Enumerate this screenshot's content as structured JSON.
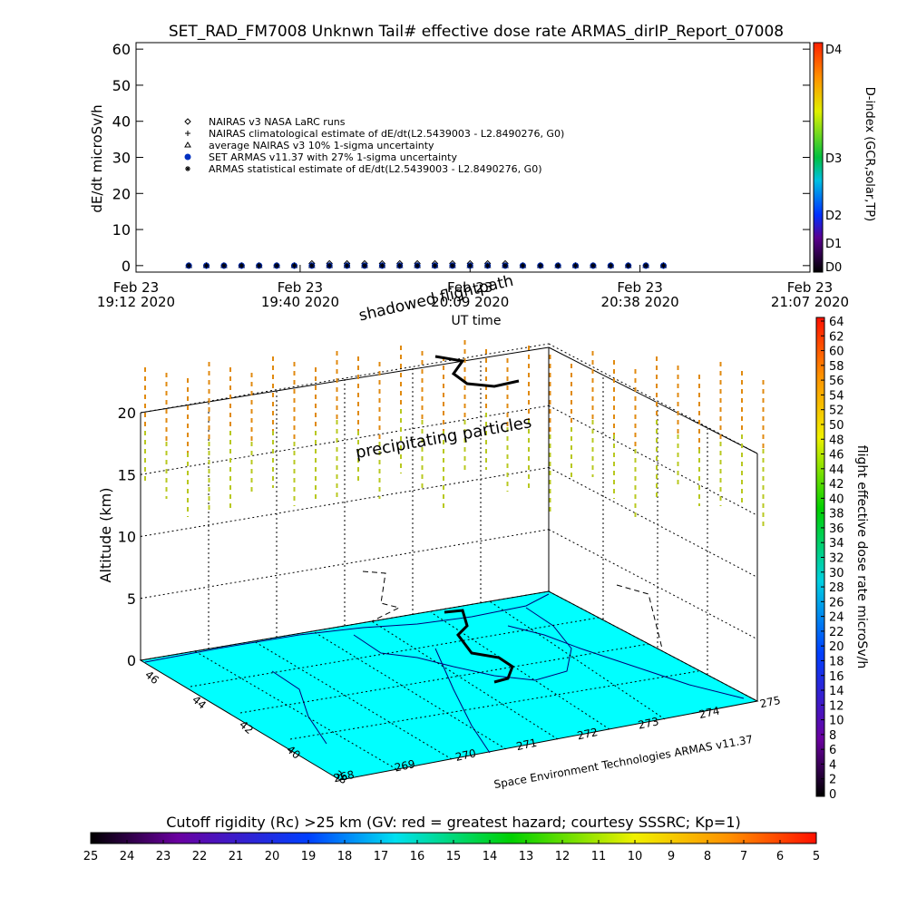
{
  "chart_data": {
    "type": "line",
    "title": "SET_RAD_FM7008  Unknwn Tail#  effective dose rate ARMAS_dirIP_Report_07008",
    "y_label": "dE/dt microSv/h",
    "x_label": "UT time",
    "x": [
      "2020-02-23T19:21",
      "2020-02-23T19:24",
      "2020-02-23T19:27",
      "2020-02-23T19:30",
      "2020-02-23T19:33",
      "2020-02-23T19:36",
      "2020-02-23T19:39",
      "2020-02-23T19:42",
      "2020-02-23T19:45",
      "2020-02-23T19:48",
      "2020-02-23T19:51",
      "2020-02-23T19:54",
      "2020-02-23T19:57",
      "2020-02-23T20:00",
      "2020-02-23T20:03",
      "2020-02-23T20:06",
      "2020-02-23T20:09",
      "2020-02-23T20:12",
      "2020-02-23T20:15",
      "2020-02-23T20:18",
      "2020-02-23T20:21",
      "2020-02-23T20:24",
      "2020-02-23T20:27",
      "2020-02-23T20:30",
      "2020-02-23T20:33",
      "2020-02-23T20:36",
      "2020-02-23T20:39",
      "2020-02-23T20:42"
    ],
    "xlim": [
      "2020-02-23T19:12",
      "2020-02-23T21:07"
    ],
    "xticks": [
      {
        "value": "2020-02-23T19:12",
        "label": "Feb 23\n19:12 2020"
      },
      {
        "value": "2020-02-23T19:40",
        "label": "Feb 23\n19:40 2020"
      },
      {
        "value": "2020-02-23T20:09",
        "label": "Feb 23\n20:09 2020"
      },
      {
        "value": "2020-02-23T20:38",
        "label": "Feb 23\n20:38 2020"
      },
      {
        "value": "2020-02-23T21:07",
        "label": "Feb 23\n21:07 2020"
      }
    ],
    "ylim": [
      -1.8,
      61.8
    ],
    "yticks": [
      0,
      10,
      20,
      30,
      40,
      50,
      60
    ],
    "series": [
      {
        "name": "NAIRAS v3 NASA LaRC runs",
        "marker": "diamond",
        "color": "#000000",
        "values": [
          0,
          0,
          0,
          0,
          0,
          0,
          0,
          0.6,
          0.6,
          0.6,
          0.6,
          0.6,
          0.6,
          0.6,
          0.6,
          0.6,
          0.6,
          0.6,
          0.6,
          0,
          0,
          0,
          0,
          0,
          0,
          0,
          0,
          0
        ]
      },
      {
        "name": "NAIRAS climatological estimate of dE/dt(L2.5439003 - L2.8490276, G0)",
        "marker": "plus",
        "color": "#000000",
        "values": [
          0,
          0,
          0,
          0,
          0,
          0,
          0,
          0,
          0,
          0,
          0,
          0,
          0,
          0,
          0,
          0,
          0,
          0,
          0,
          0,
          0,
          0,
          0,
          0,
          0,
          0,
          0,
          0
        ]
      },
      {
        "name": "average NAIRAS v3 10% 1-sigma uncertainty",
        "marker": "triangle",
        "color": "#000000",
        "values": [
          0,
          0,
          0,
          0,
          0,
          0,
          0,
          0,
          0,
          0,
          0,
          0,
          0,
          0,
          0,
          0,
          0,
          0,
          0,
          0,
          0,
          0,
          0,
          0,
          0,
          0,
          0,
          0
        ]
      },
      {
        "name": "SET ARMAS v11.37 with 27% 1-sigma uncertainty",
        "marker": "dot",
        "color": "#0030c0",
        "values": [
          0,
          0,
          0,
          0,
          0,
          0,
          0,
          0,
          0,
          0,
          0,
          0,
          0,
          0,
          0,
          0,
          0,
          0,
          0,
          0,
          0,
          0,
          0,
          0,
          0,
          0,
          0,
          0
        ]
      },
      {
        "name": "ARMAS statistical estimate of dE/dt(L2.5439003 - L2.8490276, G0)",
        "marker": "asterisk",
        "color": "#000000",
        "values": [
          0,
          0,
          0,
          0,
          0,
          0,
          0,
          0,
          0,
          0,
          0,
          0,
          0,
          0,
          0,
          0,
          0,
          0,
          0,
          0,
          0,
          0,
          0,
          0,
          0,
          0,
          0,
          0
        ]
      }
    ]
  },
  "d_index_colorbar": {
    "label": "D-index (GCR,solar,TP)",
    "ticks": [
      "D4",
      "D3",
      "D2",
      "D1",
      "D0"
    ]
  },
  "map3d": {
    "altitude_label": "Altitude (km)",
    "altitude_ticks": [
      0,
      5,
      10,
      15,
      20
    ],
    "latitude_ticks": [
      46,
      44,
      42,
      40,
      38
    ],
    "longitude_ticks": [
      268,
      269,
      270,
      271,
      272,
      273,
      274,
      275
    ],
    "credit": "Space Environment Technologies ARMAS v11.37",
    "annotations": [
      "precipitating particles",
      "shadowed flightpath"
    ]
  },
  "dose_colorbar": {
    "label": "flight effective dose rate microSv/h",
    "lim": [
      0,
      64
    ],
    "ticks": [
      0,
      2,
      4,
      6,
      8,
      10,
      12,
      14,
      16,
      18,
      20,
      22,
      24,
      26,
      28,
      30,
      32,
      34,
      36,
      38,
      40,
      42,
      44,
      46,
      48,
      50,
      52,
      54,
      56,
      58,
      60,
      62,
      64
    ]
  },
  "rigidity_colorbar": {
    "label": "Cutoff rigidity (Rc) >25 km (GV: red = greatest hazard; courtesy SSSRC; Kp=1)",
    "lim": [
      25,
      5
    ],
    "ticks": [
      25,
      24,
      23,
      22,
      21,
      20,
      19,
      18,
      17,
      16,
      15,
      14,
      13,
      12,
      11,
      10,
      9,
      8,
      7,
      6,
      5
    ]
  }
}
